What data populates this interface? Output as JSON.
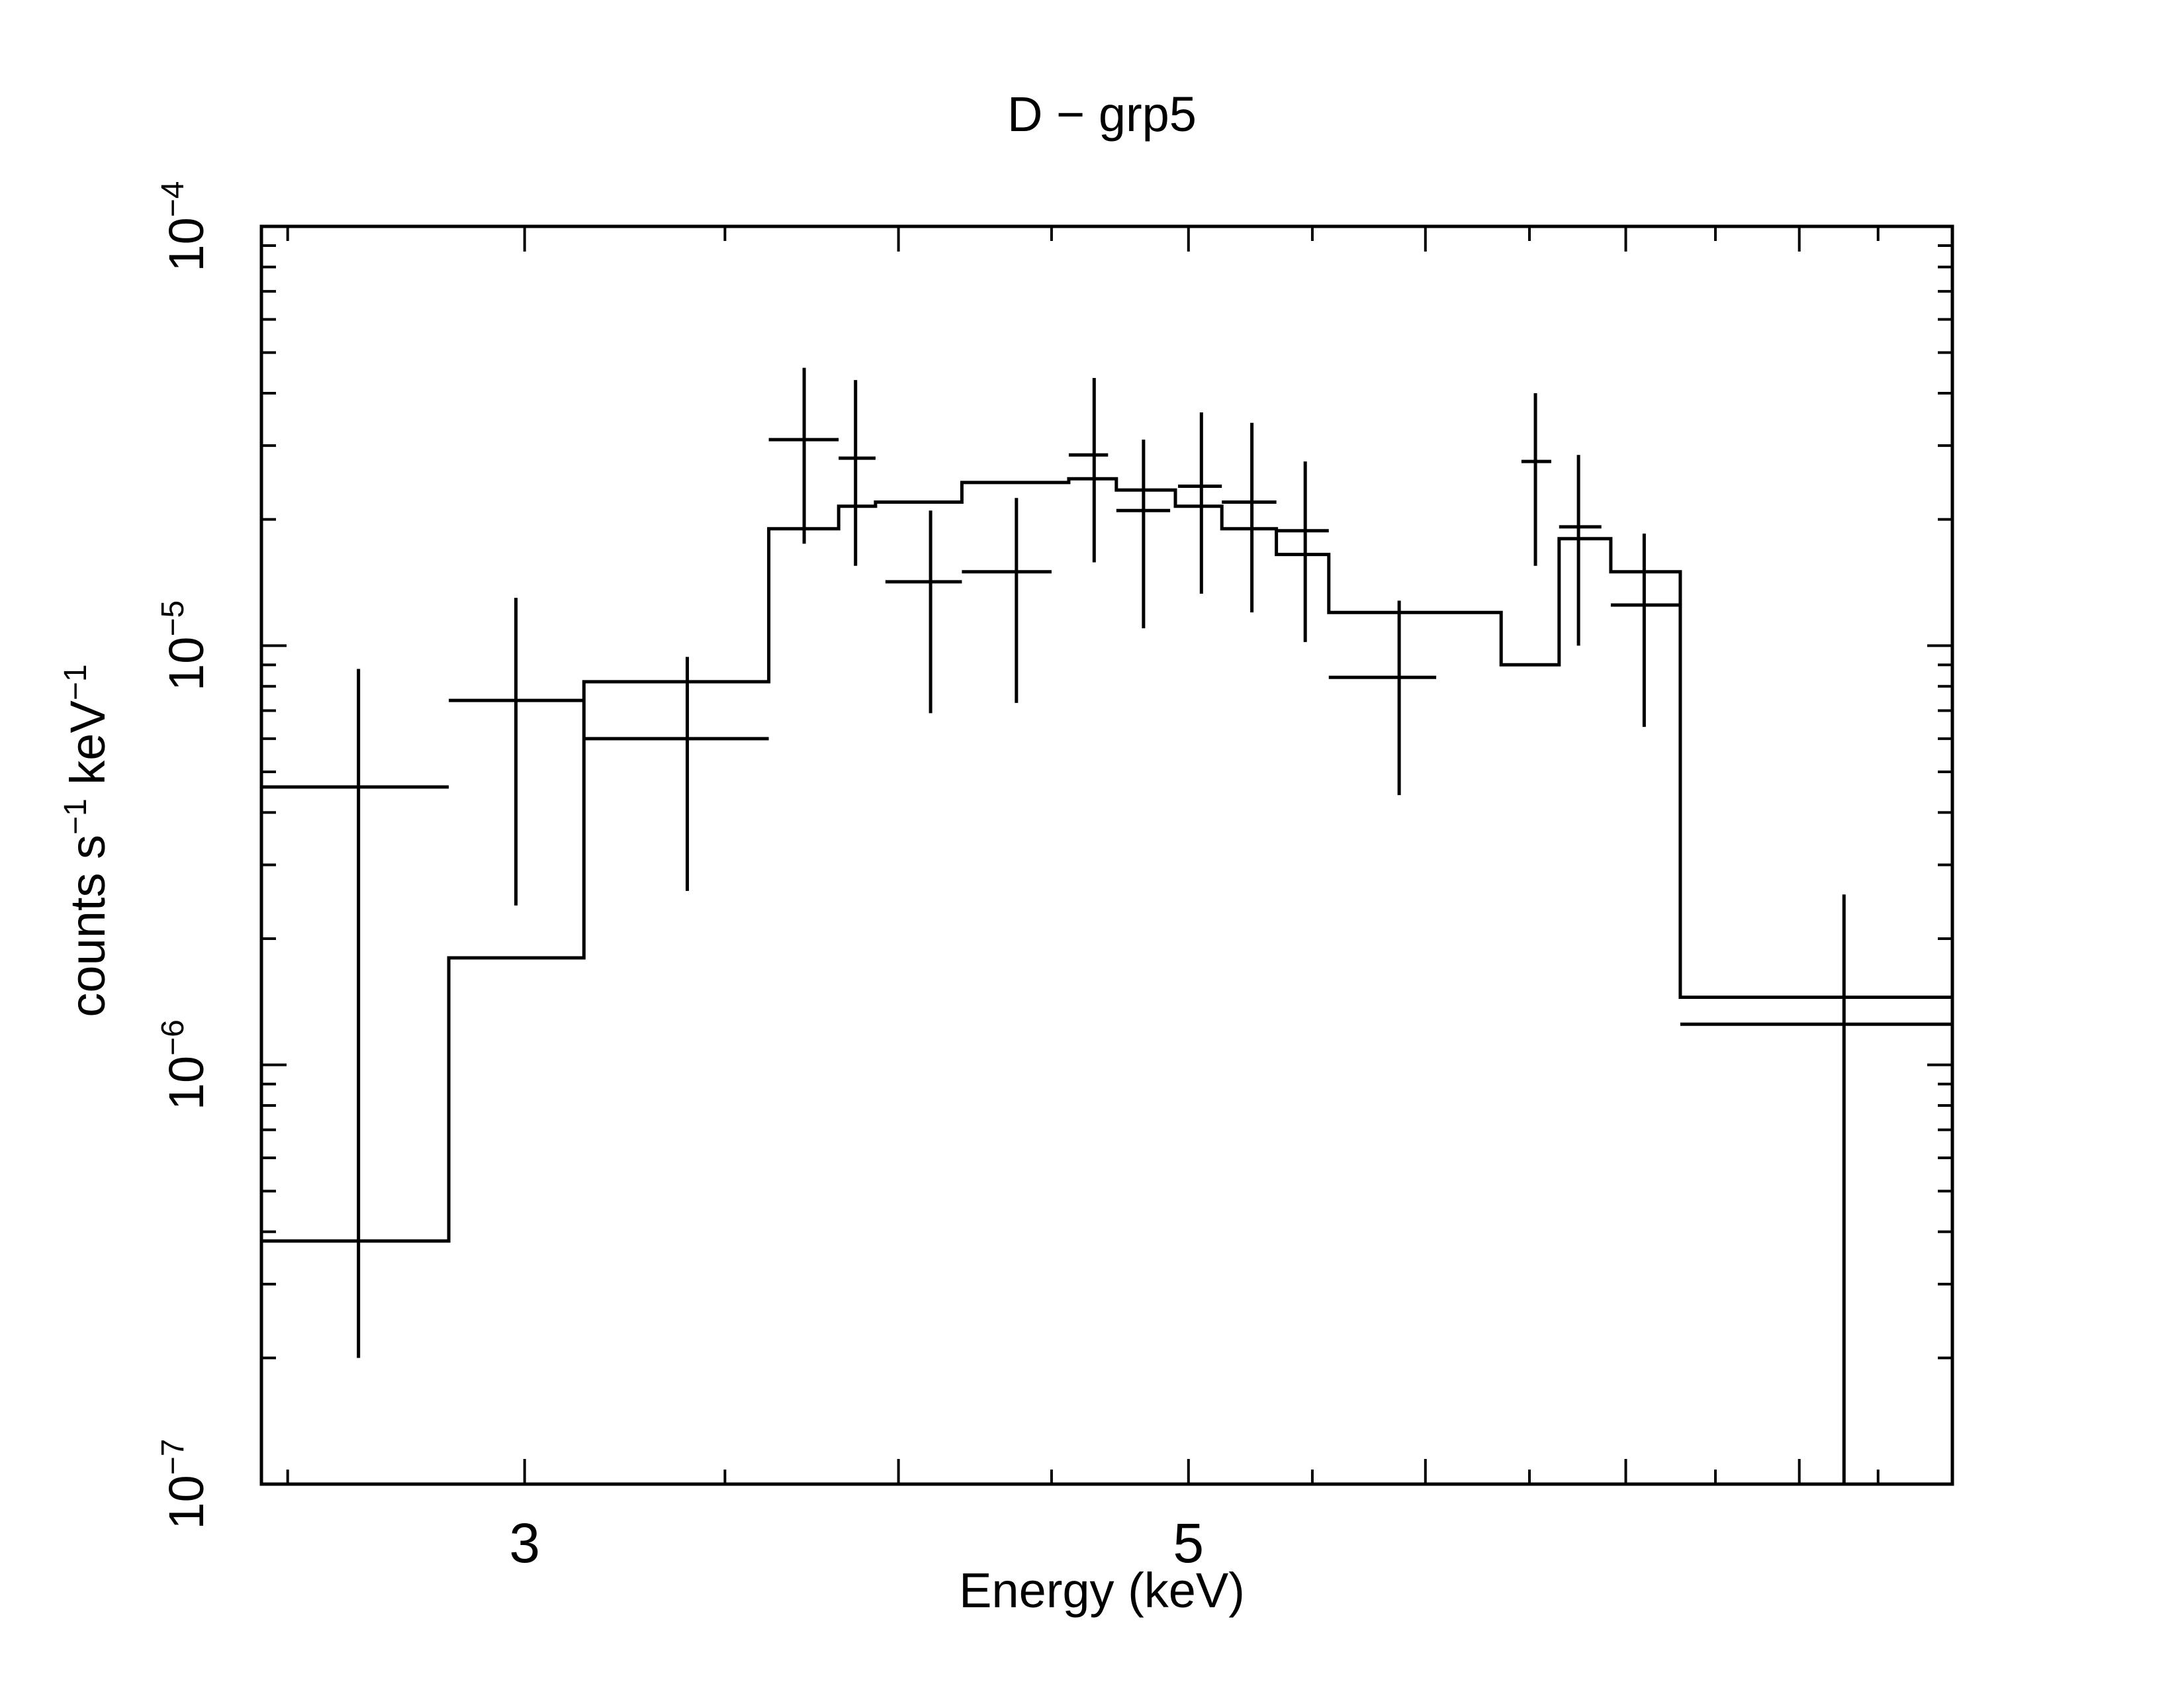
{
  "chart_data": {
    "type": "scatter",
    "title": "D − grp5",
    "xlabel": "Energy (keV)",
    "ylabel": {
      "parts": [
        {
          "text": "counts s",
          "sup": false
        },
        {
          "text": "−1",
          "sup": true
        },
        {
          "text": " keV",
          "sup": false
        },
        {
          "text": "−1",
          "sup": true
        }
      ]
    },
    "x_scale": "log",
    "y_scale": "log",
    "xlim": [
      2.45,
      9.0
    ],
    "ylim": [
      1e-07,
      0.0001
    ],
    "x_tick_labels": [
      {
        "value": 3,
        "label": "3"
      },
      {
        "value": 5,
        "label": "5"
      }
    ],
    "y_tick_labels": [
      {
        "value": 1e-07,
        "base": "10",
        "exp": "−7"
      },
      {
        "value": 1e-06,
        "base": "10",
        "exp": "−6"
      },
      {
        "value": 1e-05,
        "base": "10",
        "exp": "−5"
      },
      {
        "value": 0.0001,
        "base": "10",
        "exp": "−4"
      }
    ],
    "series": [
      {
        "name": "data",
        "kind": "errorbars",
        "points": [
          {
            "x": 2.64,
            "xlo": 2.45,
            "xhi": 2.83,
            "y": 4.6e-06,
            "ylo": 2e-07,
            "yhi": 8.8e-06
          },
          {
            "x": 2.98,
            "xlo": 2.83,
            "xhi": 3.14,
            "y": 7.4e-06,
            "ylo": 2.4e-06,
            "yhi": 1.3e-05
          },
          {
            "x": 3.4,
            "xlo": 3.14,
            "xhi": 3.62,
            "y": 6e-06,
            "ylo": 2.6e-06,
            "yhi": 9.4e-06
          },
          {
            "x": 3.72,
            "xlo": 3.62,
            "xhi": 3.82,
            "y": 3.1e-05,
            "ylo": 1.75e-05,
            "yhi": 4.6e-05
          },
          {
            "x": 3.87,
            "xlo": 3.82,
            "xhi": 3.93,
            "y": 2.8e-05,
            "ylo": 1.55e-05,
            "yhi": 4.3e-05
          },
          {
            "x": 4.1,
            "xlo": 3.96,
            "xhi": 4.2,
            "y": 1.42e-05,
            "ylo": 6.9e-06,
            "yhi": 2.1e-05
          },
          {
            "x": 4.38,
            "xlo": 4.2,
            "xhi": 4.5,
            "y": 1.5e-05,
            "ylo": 7.3e-06,
            "yhi": 2.25e-05
          },
          {
            "x": 4.65,
            "xlo": 4.56,
            "xhi": 4.7,
            "y": 2.85e-05,
            "ylo": 1.58e-05,
            "yhi": 4.35e-05
          },
          {
            "x": 4.83,
            "xlo": 4.73,
            "xhi": 4.93,
            "y": 2.1e-05,
            "ylo": 1.1e-05,
            "yhi": 3.1e-05
          },
          {
            "x": 5.05,
            "xlo": 4.96,
            "xhi": 5.13,
            "y": 2.4e-05,
            "ylo": 1.33e-05,
            "yhi": 3.6e-05
          },
          {
            "x": 5.25,
            "xlo": 5.13,
            "xhi": 5.35,
            "y": 2.2e-05,
            "ylo": 1.2e-05,
            "yhi": 3.4e-05
          },
          {
            "x": 5.47,
            "xlo": 5.35,
            "xhi": 5.57,
            "y": 1.88e-05,
            "ylo": 1.02e-05,
            "yhi": 2.75e-05
          },
          {
            "x": 5.88,
            "xlo": 5.57,
            "xhi": 6.05,
            "y": 8.4e-06,
            "ylo": 4.4e-06,
            "yhi": 1.28e-05
          },
          {
            "x": 6.53,
            "xlo": 6.46,
            "xhi": 6.61,
            "y": 2.75e-05,
            "ylo": 1.55e-05,
            "yhi": 4e-05
          },
          {
            "x": 6.75,
            "xlo": 6.65,
            "xhi": 6.87,
            "y": 1.92e-05,
            "ylo": 1e-05,
            "yhi": 2.85e-05
          },
          {
            "x": 7.1,
            "xlo": 6.92,
            "xhi": 7.3,
            "y": 1.25e-05,
            "ylo": 6.4e-06,
            "yhi": 1.85e-05
          },
          {
            "x": 8.28,
            "xlo": 7.3,
            "xhi": 9.0,
            "y": 1.25e-06,
            "ylo": 1e-07,
            "yhi": 2.55e-06
          }
        ]
      },
      {
        "name": "model",
        "kind": "step",
        "bins": [
          {
            "x0": 2.45,
            "x1": 2.83,
            "y": 3.8e-07
          },
          {
            "x0": 2.83,
            "x1": 3.14,
            "y": 1.8e-06
          },
          {
            "x0": 3.14,
            "x1": 3.62,
            "y": 8.2e-06
          },
          {
            "x0": 3.62,
            "x1": 3.82,
            "y": 1.9e-05
          },
          {
            "x0": 3.82,
            "x1": 3.93,
            "y": 2.15e-05
          },
          {
            "x0": 3.93,
            "x1": 4.2,
            "y": 2.2e-05
          },
          {
            "x0": 4.2,
            "x1": 4.56,
            "y": 2.45e-05
          },
          {
            "x0": 4.56,
            "x1": 4.73,
            "y": 2.5e-05
          },
          {
            "x0": 4.73,
            "x1": 4.95,
            "y": 2.35e-05
          },
          {
            "x0": 4.95,
            "x1": 5.13,
            "y": 2.15e-05
          },
          {
            "x0": 5.13,
            "x1": 5.35,
            "y": 1.9e-05
          },
          {
            "x0": 5.35,
            "x1": 5.57,
            "y": 1.65e-05
          },
          {
            "x0": 5.57,
            "x1": 6.36,
            "y": 1.2e-05
          },
          {
            "x0": 6.36,
            "x1": 6.65,
            "y": 9e-06
          },
          {
            "x0": 6.65,
            "x1": 6.92,
            "y": 1.8e-05
          },
          {
            "x0": 6.92,
            "x1": 7.3,
            "y": 1.5e-05
          },
          {
            "x0": 7.3,
            "x1": 9.0,
            "y": 1.45e-06
          }
        ]
      }
    ]
  }
}
